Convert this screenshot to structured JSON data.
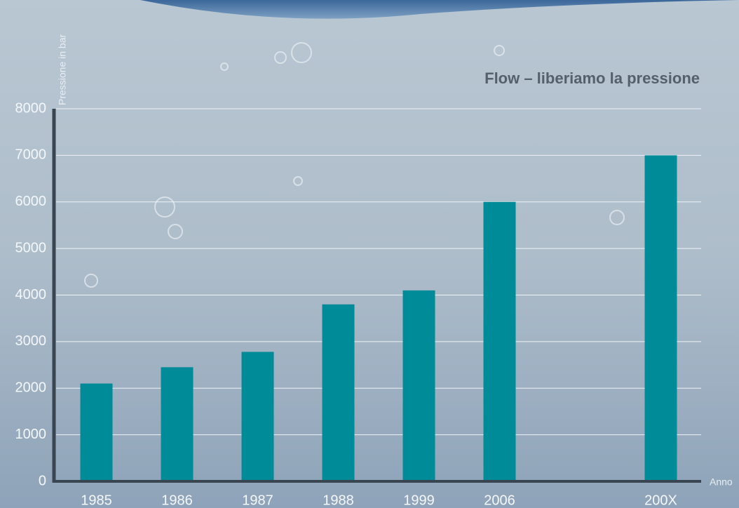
{
  "chart_data": {
    "type": "bar",
    "title": "Flow – liberiamo la pressione",
    "y_label": "Pressione in bar",
    "x_label": "Anno",
    "categories": [
      "1985",
      "1986",
      "1987",
      "1988",
      "1999",
      "2006",
      null,
      "200X"
    ],
    "values": [
      2100,
      2450,
      2780,
      3800,
      4100,
      6000,
      null,
      7000
    ],
    "color": "#008b99",
    "ylim": [
      0,
      8000
    ],
    "yticks": [
      0,
      1000,
      2000,
      3000,
      4000,
      5000,
      6000,
      7000,
      8000
    ],
    "grid": true
  }
}
